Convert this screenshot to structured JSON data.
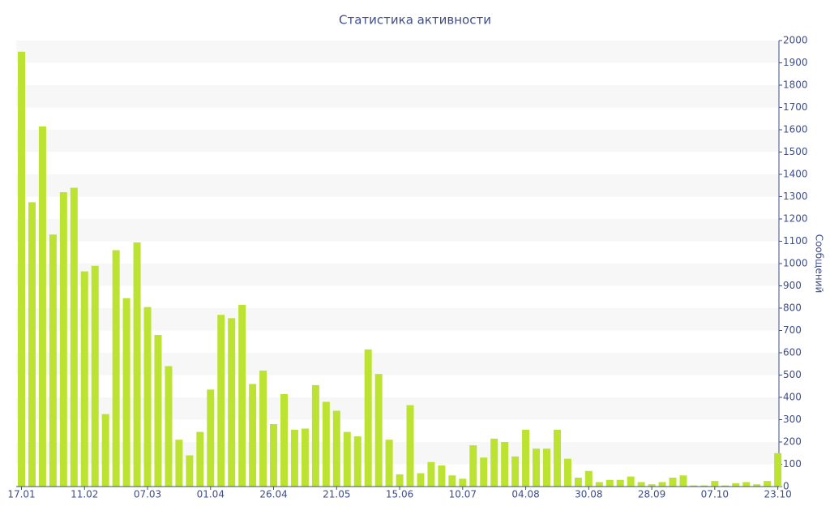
{
  "chart_data": {
    "type": "bar",
    "title": "Статистика активности",
    "y_label": "Сообщений",
    "categories": [
      "17.01",
      null,
      null,
      null,
      null,
      null,
      "11.02",
      null,
      null,
      null,
      null,
      null,
      "07.03",
      null,
      null,
      null,
      null,
      null,
      "01.04",
      null,
      null,
      null,
      null,
      null,
      "26.04",
      null,
      null,
      null,
      null,
      null,
      "21.05",
      null,
      null,
      null,
      null,
      null,
      "15.06",
      null,
      null,
      null,
      null,
      null,
      "10.07",
      null,
      null,
      null,
      null,
      null,
      "04.08",
      null,
      null,
      null,
      null,
      null,
      "30.08",
      null,
      null,
      null,
      null,
      null,
      "28.09",
      null,
      null,
      null,
      null,
      null,
      "07.10",
      null,
      null,
      null,
      null,
      null,
      "23.10"
    ],
    "values": [
      1950,
      1275,
      1615,
      1130,
      1320,
      1340,
      965,
      990,
      325,
      1060,
      845,
      1095,
      805,
      680,
      540,
      210,
      140,
      245,
      435,
      770,
      755,
      815,
      460,
      520,
      280,
      415,
      255,
      260,
      455,
      380,
      340,
      245,
      225,
      615,
      505,
      210,
      55,
      365,
      60,
      110,
      95,
      50,
      35,
      185,
      130,
      215,
      200,
      135,
      255,
      170,
      170,
      255,
      125,
      40,
      70,
      20,
      30,
      30,
      45,
      20,
      10,
      20,
      40,
      50,
      5,
      5,
      25,
      5,
      15,
      20,
      10,
      25,
      150
    ],
    "color": "#bce232",
    "ylim": [
      0,
      2000
    ],
    "yticks": [
      0,
      100,
      200,
      300,
      400,
      500,
      600,
      700,
      800,
      900,
      1000,
      1100,
      1200,
      1300,
      1400,
      1500,
      1600,
      1700,
      1800,
      1900,
      2000
    ],
    "y_axis_side": "right",
    "grid": true
  }
}
